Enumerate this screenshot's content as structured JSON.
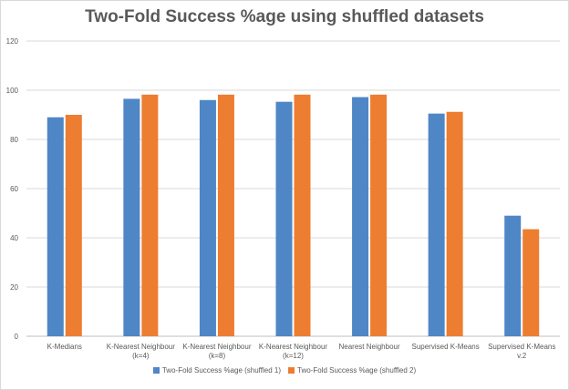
{
  "chart_data": {
    "type": "bar",
    "title": "Two-Fold Success %age using shuffled datasets",
    "xlabel": "",
    "ylabel": "",
    "ylim": [
      0,
      120
    ],
    "yticks": [
      "0",
      "20",
      "40",
      "60",
      "80",
      "100",
      "120"
    ],
    "grid": true,
    "legend_position": "bottom",
    "categories": [
      [
        "K-Medians"
      ],
      [
        "K-Nearest Neighbour",
        "(k=4)"
      ],
      [
        "K-Nearest Neighbour",
        "(k=8)"
      ],
      [
        "K-Nearest Neighbour",
        "(k=12)"
      ],
      [
        "Nearest Neighbour"
      ],
      [
        "Supervised K-Means"
      ],
      [
        "Supervised K-Means",
        "v.2"
      ]
    ],
    "series": [
      {
        "name": "Two-Fold Success %age (shuffled 1)",
        "color": "#4f86c6",
        "values": [
          89,
          96.5,
          96,
          95.3,
          97.2,
          90.5,
          49
        ]
      },
      {
        "name": "Two-Fold Success %age (shuffled 2)",
        "color": "#ed7d31",
        "values": [
          90,
          98.2,
          98.2,
          98.2,
          98.2,
          91.2,
          43.5
        ]
      }
    ]
  }
}
